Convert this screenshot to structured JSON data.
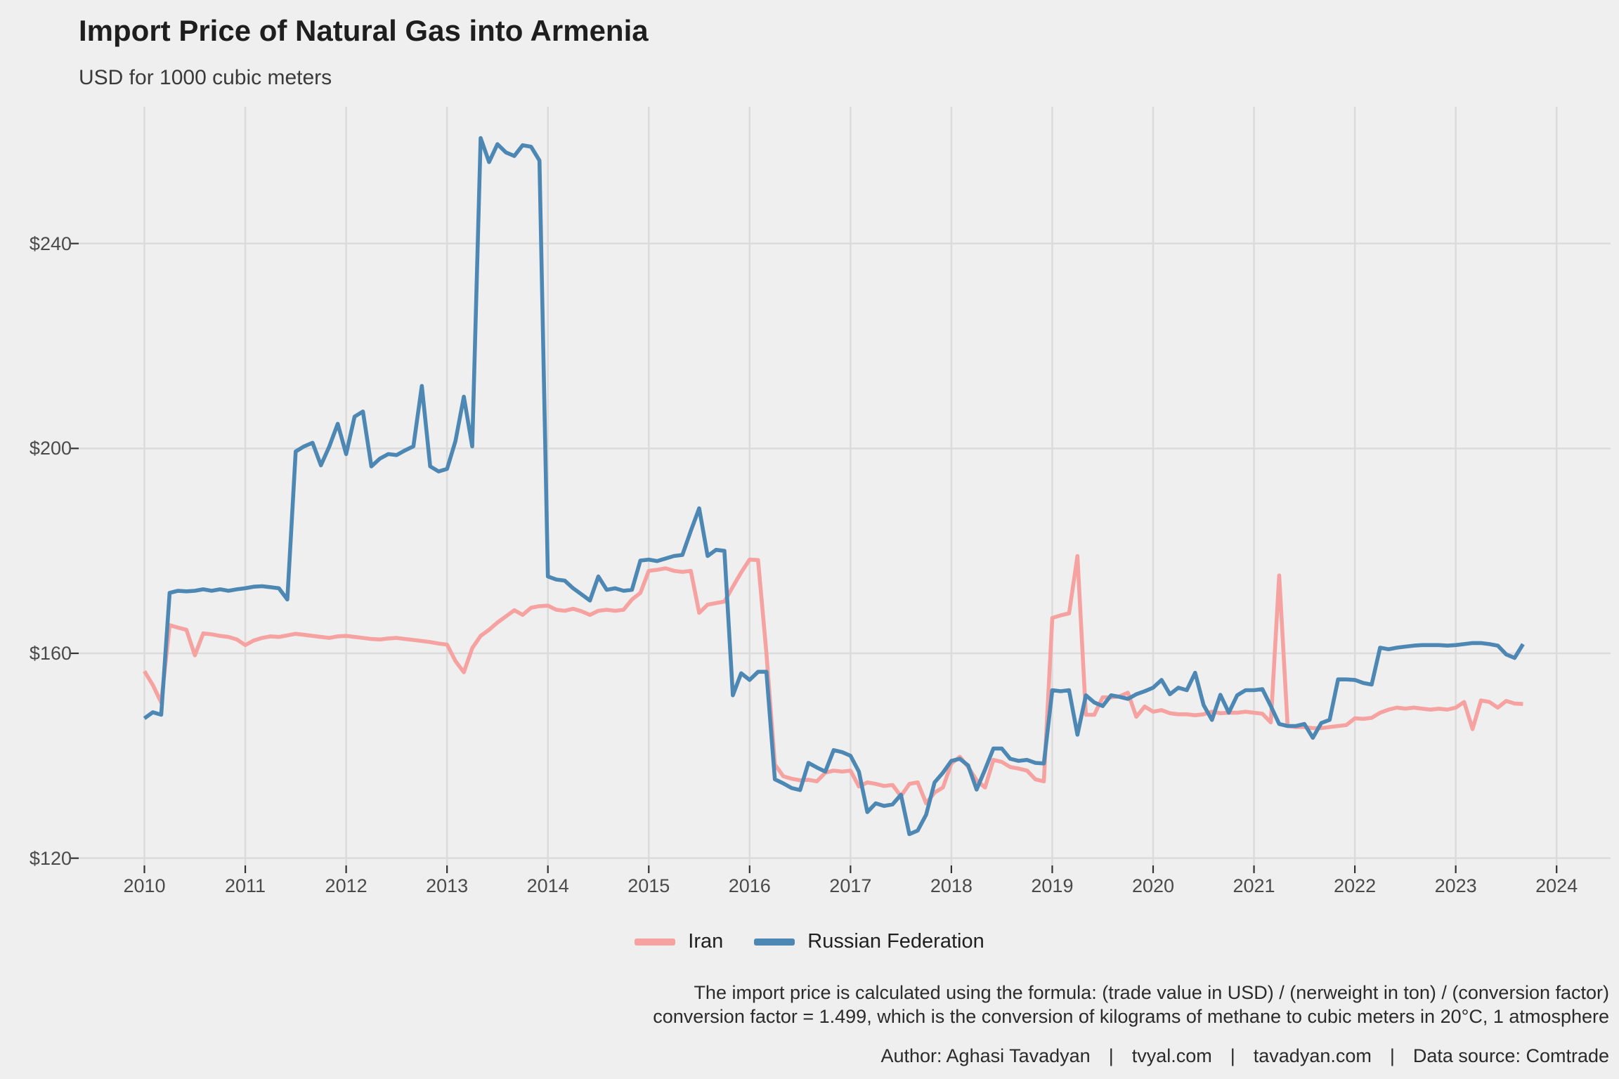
{
  "chart_data": {
    "type": "line",
    "title": "Import Price of Natural Gas into Armenia",
    "subtitle": "USD for 1000 cubic meters",
    "x_tick_labels": [
      "2010",
      "2011",
      "2012",
      "2013",
      "2014",
      "2015",
      "2016",
      "2017",
      "2018",
      "2019",
      "2020",
      "2021",
      "2022",
      "2023",
      "2024"
    ],
    "y_ticks": [
      120,
      160,
      200,
      240
    ],
    "y_tick_labels": [
      "$120",
      "$160",
      "$200",
      "$240"
    ],
    "x_range_years": [
      2009.35,
      2024.53
    ],
    "y_range": [
      118.5,
      266.5
    ],
    "grid": "major-only",
    "legend_position": "bottom-center",
    "frequency": "monthly",
    "start": "2010-01",
    "end": "2023-09",
    "background_color": "#EFEFEF",
    "gridline_color": "#DBDBDB",
    "tick_color": "#333333",
    "series": [
      {
        "name": "Iran",
        "color": "#F5A2A0",
        "values": [
          156.5,
          153.8,
          150.4,
          165.5,
          165.0,
          164.6,
          159.6,
          163.9,
          163.7,
          163.4,
          163.2,
          162.7,
          161.6,
          162.5,
          163.0,
          163.3,
          163.2,
          163.5,
          163.8,
          163.6,
          163.4,
          163.2,
          163.0,
          163.3,
          163.4,
          163.2,
          163.0,
          162.8,
          162.7,
          162.9,
          163.0,
          162.8,
          162.6,
          162.4,
          162.2,
          161.9,
          161.7,
          158.5,
          156.3,
          161.0,
          163.4,
          164.6,
          166.0,
          167.2,
          168.4,
          167.5,
          168.9,
          169.2,
          169.3,
          168.5,
          168.3,
          168.7,
          168.2,
          167.5,
          168.3,
          168.5,
          168.3,
          168.5,
          170.5,
          171.8,
          176.1,
          176.3,
          176.6,
          176.1,
          175.9,
          176.1,
          167.9,
          169.5,
          169.8,
          170.1,
          173.0,
          175.8,
          178.3,
          178.2,
          160.0,
          138.3,
          136.0,
          135.5,
          135.2,
          135.3,
          135.0,
          136.7,
          137.1,
          136.9,
          137.1,
          134.0,
          134.8,
          134.5,
          134.1,
          134.3,
          132.1,
          134.5,
          134.8,
          130.7,
          132.8,
          133.8,
          138.5,
          139.8,
          137.8,
          135.2,
          133.8,
          139.2,
          138.8,
          137.8,
          137.5,
          137.1,
          135.4,
          135.0,
          166.9,
          167.4,
          167.8,
          179.0,
          148.0,
          148.0,
          151.4,
          151.4,
          151.6,
          152.3,
          147.6,
          149.6,
          148.6,
          148.9,
          148.3,
          148.1,
          148.1,
          147.9,
          148.1,
          148.6,
          148.3,
          148.4,
          148.4,
          148.6,
          148.4,
          148.2,
          146.5,
          175.2,
          145.8,
          145.6,
          145.6,
          145.4,
          145.4,
          145.6,
          145.8,
          146.0,
          147.3,
          147.2,
          147.4,
          148.4,
          149.0,
          149.4,
          149.2,
          149.4,
          149.2,
          149.0,
          149.2,
          149.0,
          149.4,
          150.5,
          145.2,
          150.8,
          150.5,
          149.4,
          150.7,
          150.2,
          150.1
        ]
      },
      {
        "name": "Russian Federation",
        "color": "#4D87B3",
        "values": [
          147.3,
          148.5,
          148.0,
          171.8,
          172.2,
          172.1,
          172.2,
          172.5,
          172.2,
          172.5,
          172.2,
          172.5,
          172.7,
          173.0,
          173.1,
          172.9,
          172.7,
          170.5,
          199.4,
          200.4,
          201.1,
          196.7,
          200.4,
          204.8,
          198.9,
          206.2,
          207.2,
          196.5,
          198.0,
          198.9,
          198.7,
          199.6,
          200.4,
          212.2,
          196.5,
          195.5,
          196.0,
          201.4,
          210.1,
          200.4,
          260.6,
          255.9,
          259.4,
          257.8,
          257.1,
          259.2,
          258.9,
          256.2,
          175.0,
          174.4,
          174.2,
          172.7,
          171.5,
          170.3,
          175.0,
          172.4,
          172.7,
          172.2,
          172.4,
          178.1,
          178.3,
          178.0,
          178.5,
          179.0,
          179.2,
          183.9,
          188.3,
          179.0,
          180.2,
          180.0,
          151.8,
          156.1,
          154.8,
          156.4,
          156.4,
          135.4,
          134.6,
          133.7,
          133.3,
          138.6,
          137.7,
          136.9,
          141.1,
          140.7,
          140.0,
          136.9,
          129.0,
          130.7,
          130.2,
          130.5,
          132.4,
          124.7,
          125.4,
          128.5,
          134.8,
          136.7,
          139.0,
          139.4,
          138.1,
          133.4,
          137.3,
          141.4,
          141.4,
          139.4,
          139.0,
          139.2,
          138.6,
          138.5,
          152.8,
          152.6,
          152.8,
          144.1,
          151.8,
          150.4,
          149.7,
          151.8,
          151.5,
          151.1,
          152.0,
          152.6,
          153.3,
          154.8,
          152.0,
          153.3,
          152.8,
          156.2,
          149.9,
          147.0,
          151.9,
          148.4,
          151.8,
          152.8,
          152.8,
          153.0,
          149.7,
          146.2,
          145.8,
          145.8,
          146.2,
          143.5,
          146.4,
          147.0,
          154.9,
          154.9,
          154.8,
          154.2,
          153.9,
          161.1,
          160.8,
          161.1,
          161.3,
          161.5,
          161.6,
          161.6,
          161.6,
          161.5,
          161.6,
          161.8,
          162.0,
          162.0,
          161.8,
          161.5,
          159.8,
          159.1,
          161.8
        ]
      }
    ]
  },
  "caption": {
    "line1": "The import price is calculated using the formula: (trade value in USD) / (nerweight in ton) / (conversion factor)",
    "line2": "conversion factor = 1.499, which is the conversion of kilograms of methane to cubic meters in 20°C, 1 atmosphere"
  },
  "footer": {
    "author": "Author: Aghasi Tavadyan",
    "site1": "tvyal.com",
    "site2": "tavadyan.com",
    "source": "Data source: Comtrade",
    "separator": "|"
  }
}
